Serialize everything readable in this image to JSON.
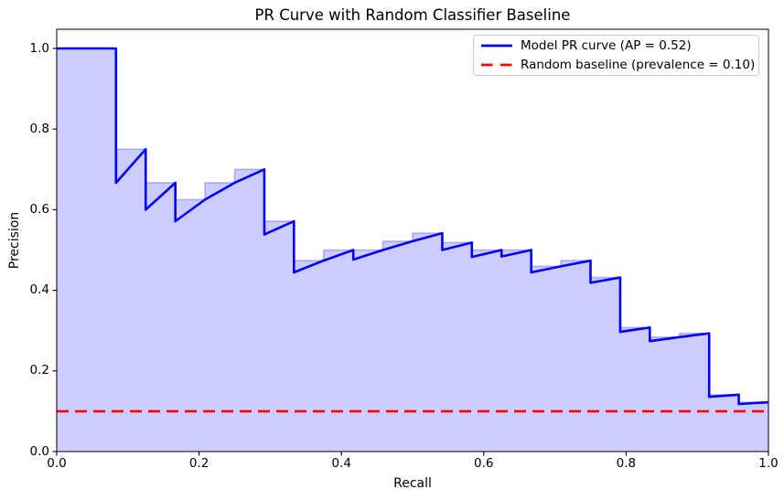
{
  "figure": {
    "title": "PR Curve with Random Classifier Baseline",
    "x_axis": {
      "label": "Recall",
      "tick_labels": [
        "0.0",
        "0.2",
        "0.4",
        "0.6",
        "0.8",
        "1.0"
      ]
    },
    "y_axis": {
      "label": "Precision",
      "tick_labels": [
        "0.0",
        "0.2",
        "0.4",
        "0.6",
        "0.8",
        "1.0"
      ]
    },
    "legend": {
      "items": [
        {
          "label": "Model PR curve (AP = 0.52)",
          "color": "#0000ff",
          "line_style": "solid"
        },
        {
          "label": "Random baseline (prevalence = 0.10)",
          "color": "#ff0000",
          "line_style": "dashed"
        }
      ]
    }
  },
  "chart_data": {
    "type": "line",
    "title": "PR Curve with Random Classifier Baseline",
    "xlabel": "Recall",
    "ylabel": "Precision",
    "xlim": [
      0.0,
      1.0
    ],
    "ylim": [
      0.0,
      1.05
    ],
    "grid": false,
    "legend_position": "upper right",
    "stats": {
      "average_precision": 0.52,
      "prevalence": 0.1
    },
    "series": [
      {
        "name": "Model PR curve (AP = 0.52)",
        "color": "#0000ff",
        "linewidth": 2.6,
        "style": "solid",
        "points": [
          [
            0.0,
            1.0
          ],
          [
            0.0833,
            1.0
          ],
          [
            0.0833,
            0.6667
          ],
          [
            0.125,
            0.75
          ],
          [
            0.125,
            0.6
          ],
          [
            0.1667,
            0.6667
          ],
          [
            0.1667,
            0.5714
          ],
          [
            0.2083,
            0.625
          ],
          [
            0.25,
            0.6667
          ],
          [
            0.2917,
            0.7
          ],
          [
            0.2917,
            0.5385
          ],
          [
            0.3333,
            0.5714
          ],
          [
            0.3333,
            0.4444
          ],
          [
            0.375,
            0.4737
          ],
          [
            0.4167,
            0.5
          ],
          [
            0.4167,
            0.4762
          ],
          [
            0.4583,
            0.5
          ],
          [
            0.5,
            0.5217
          ],
          [
            0.5417,
            0.5417
          ],
          [
            0.5417,
            0.5
          ],
          [
            0.5833,
            0.5185
          ],
          [
            0.5833,
            0.4828
          ],
          [
            0.625,
            0.5
          ],
          [
            0.625,
            0.4839
          ],
          [
            0.6667,
            0.5
          ],
          [
            0.6667,
            0.4444
          ],
          [
            0.7083,
            0.4595
          ],
          [
            0.75,
            0.4737
          ],
          [
            0.75,
            0.4186
          ],
          [
            0.7917,
            0.4318
          ],
          [
            0.7917,
            0.2969
          ],
          [
            0.8333,
            0.3077
          ],
          [
            0.8333,
            0.274
          ],
          [
            0.875,
            0.2838
          ],
          [
            0.9167,
            0.2933
          ],
          [
            0.9167,
            0.1358
          ],
          [
            0.9583,
            0.1411
          ],
          [
            0.9583,
            0.1179
          ],
          [
            1.0,
            0.1224
          ]
        ]
      },
      {
        "name": "Random baseline (prevalence = 0.10)",
        "color": "#ff0000",
        "linewidth": 2.6,
        "style": "dashed",
        "points": [
          [
            0.0,
            0.1
          ],
          [
            1.0,
            0.1
          ]
        ]
      }
    ],
    "fill": {
      "name": "PR curve step fill",
      "color": "#ccccff",
      "edge_color": "rgba(0,0,255,0.25)",
      "step": "pre",
      "baseline": 0.0,
      "anchors": [
        [
          0.0,
          1.0
        ],
        [
          0.0417,
          1.0
        ],
        [
          0.0833,
          1.0
        ],
        [
          0.125,
          0.75
        ],
        [
          0.1667,
          0.6667
        ],
        [
          0.2083,
          0.625
        ],
        [
          0.25,
          0.6667
        ],
        [
          0.2917,
          0.7
        ],
        [
          0.3333,
          0.5714
        ],
        [
          0.375,
          0.4737
        ],
        [
          0.4167,
          0.5
        ],
        [
          0.4583,
          0.5
        ],
        [
          0.5,
          0.5217
        ],
        [
          0.5417,
          0.5417
        ],
        [
          0.5833,
          0.5185
        ],
        [
          0.625,
          0.5
        ],
        [
          0.6667,
          0.5
        ],
        [
          0.7083,
          0.4595
        ],
        [
          0.75,
          0.4737
        ],
        [
          0.7917,
          0.4318
        ],
        [
          0.8333,
          0.3077
        ],
        [
          0.875,
          0.2838
        ],
        [
          0.9167,
          0.2933
        ],
        [
          0.9583,
          0.1411
        ],
        [
          1.0,
          0.1224
        ]
      ]
    }
  }
}
